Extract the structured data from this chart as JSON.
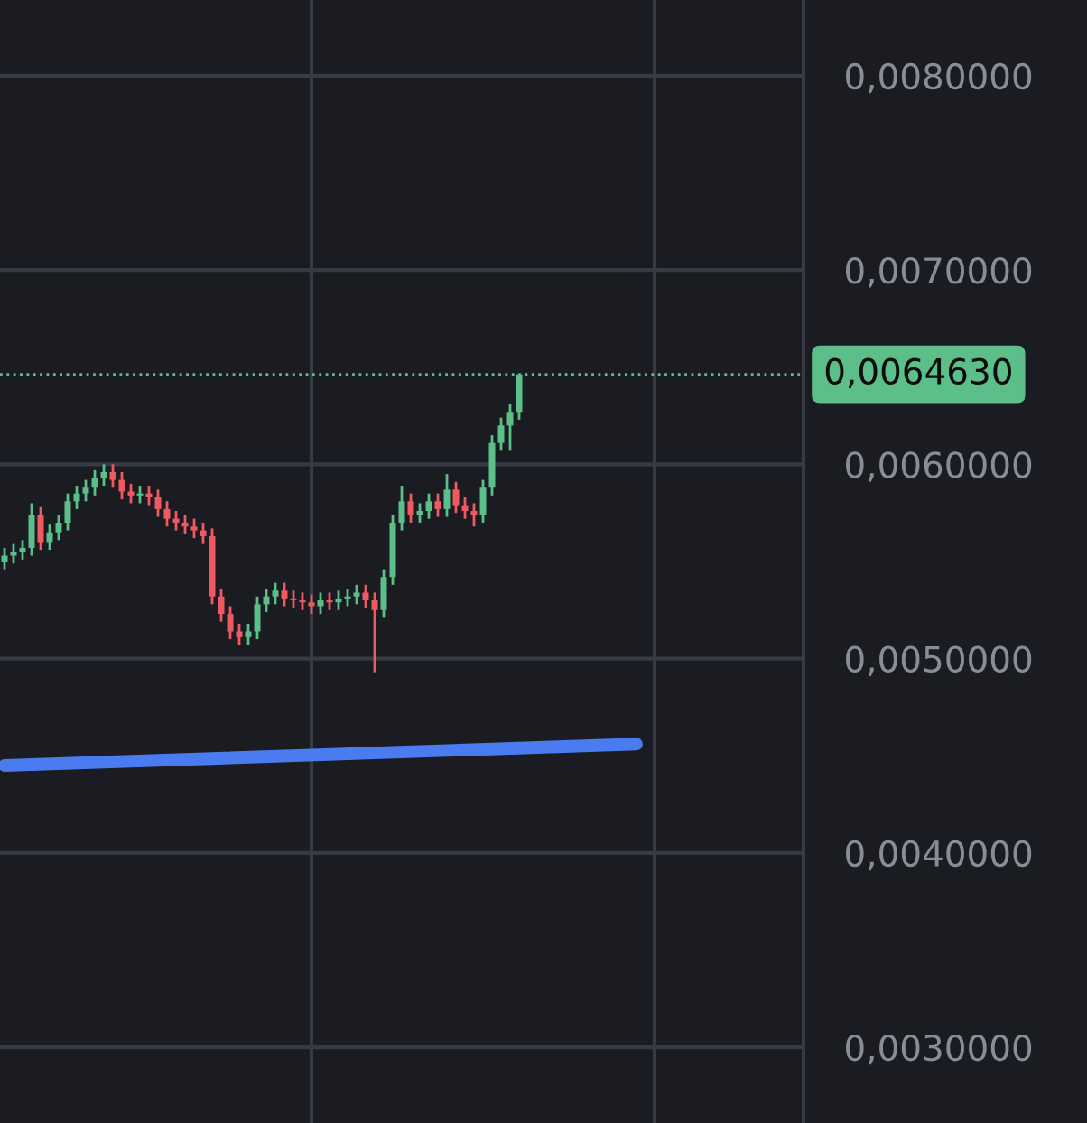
{
  "chart_data": {
    "type": "candlestick",
    "categories": [
      null,
      null,
      null,
      null,
      null,
      null,
      null,
      null,
      null,
      null,
      null,
      null,
      null,
      null,
      null,
      null,
      null,
      null,
      null,
      null,
      null,
      null,
      null,
      null,
      null,
      null,
      null,
      null,
      null,
      null,
      null,
      null,
      null,
      null,
      null,
      null,
      null,
      null,
      null,
      null,
      null,
      null,
      null,
      null,
      null,
      null,
      null,
      null,
      null,
      null,
      null,
      null,
      null,
      null,
      null,
      null,
      null,
      null,
      null,
      null,
      null,
      null,
      null,
      null,
      null,
      null,
      null,
      null,
      null,
      null,
      null,
      null,
      null,
      null,
      null,
      null,
      null,
      null,
      null,
      null,
      null,
      null,
      null,
      null,
      null,
      null,
      null,
      null,
      null
    ],
    "ohlc": [
      [
        0.0055,
        0.00557,
        0.00546,
        0.00553
      ],
      [
        0.00553,
        0.00559,
        0.00549,
        0.00555
      ],
      [
        0.00555,
        0.00561,
        0.00551,
        0.00557
      ],
      [
        0.00557,
        0.0058,
        0.00553,
        0.00574
      ],
      [
        0.00574,
        0.00578,
        0.00556,
        0.0056
      ],
      [
        0.0056,
        0.00569,
        0.00556,
        0.00565
      ],
      [
        0.00565,
        0.00574,
        0.00561,
        0.0057
      ],
      [
        0.0057,
        0.00585,
        0.00566,
        0.00581
      ],
      [
        0.00581,
        0.00589,
        0.00577,
        0.00585
      ],
      [
        0.00585,
        0.00592,
        0.00581,
        0.00588
      ],
      [
        0.00588,
        0.00597,
        0.00584,
        0.00593
      ],
      [
        0.00593,
        0.006,
        0.00589,
        0.00596
      ],
      [
        0.00596,
        0.006,
        0.00588,
        0.00592
      ],
      [
        0.00592,
        0.00596,
        0.00582,
        0.00586
      ],
      [
        0.00586,
        0.0059,
        0.0058,
        0.00584
      ],
      [
        0.00584,
        0.00589,
        0.0058,
        0.00585
      ],
      [
        0.00585,
        0.00589,
        0.00579,
        0.00583
      ],
      [
        0.00583,
        0.00587,
        0.00573,
        0.00577
      ],
      [
        0.00577,
        0.00581,
        0.00568,
        0.00572
      ],
      [
        0.00572,
        0.00576,
        0.00566,
        0.0057
      ],
      [
        0.0057,
        0.00574,
        0.00564,
        0.00568
      ],
      [
        0.00568,
        0.00572,
        0.00562,
        0.00566
      ],
      [
        0.00566,
        0.0057,
        0.00559,
        0.00563
      ],
      [
        0.00563,
        0.00567,
        0.00528,
        0.00532
      ],
      [
        0.00532,
        0.00536,
        0.00519,
        0.00523
      ],
      [
        0.00523,
        0.00527,
        0.0051,
        0.00514
      ],
      [
        0.00514,
        0.00518,
        0.00507,
        0.00511
      ],
      [
        0.00511,
        0.00518,
        0.00507,
        0.00514
      ],
      [
        0.00514,
        0.00532,
        0.0051,
        0.00528
      ],
      [
        0.00528,
        0.00536,
        0.00524,
        0.00532
      ],
      [
        0.00532,
        0.00539,
        0.00528,
        0.00535
      ],
      [
        0.00535,
        0.00539,
        0.00527,
        0.00531
      ],
      [
        0.00531,
        0.00535,
        0.00526,
        0.0053
      ],
      [
        0.0053,
        0.00534,
        0.00525,
        0.00529
      ],
      [
        0.00529,
        0.00533,
        0.00523,
        0.00527
      ],
      [
        0.00527,
        0.00534,
        0.00523,
        0.0053
      ],
      [
        0.0053,
        0.00534,
        0.00525,
        0.00529
      ],
      [
        0.00529,
        0.00535,
        0.00525,
        0.00531
      ],
      [
        0.00531,
        0.00536,
        0.00527,
        0.00532
      ],
      [
        0.00532,
        0.00538,
        0.00528,
        0.00534
      ],
      [
        0.00534,
        0.00538,
        0.00526,
        0.0053
      ],
      [
        0.0053,
        0.00534,
        0.00493,
        0.00525
      ],
      [
        0.00525,
        0.00546,
        0.00521,
        0.00542
      ],
      [
        0.00542,
        0.00574,
        0.00538,
        0.0057
      ],
      [
        0.0057,
        0.00589,
        0.00566,
        0.00581
      ],
      [
        0.00581,
        0.00585,
        0.0057,
        0.00574
      ],
      [
        0.00574,
        0.0058,
        0.0057,
        0.00576
      ],
      [
        0.00576,
        0.00585,
        0.00572,
        0.00581
      ],
      [
        0.00581,
        0.00585,
        0.00573,
        0.00577
      ],
      [
        0.00577,
        0.00595,
        0.00573,
        0.00587
      ],
      [
        0.00587,
        0.00591,
        0.00575,
        0.00579
      ],
      [
        0.00579,
        0.00583,
        0.00572,
        0.00576
      ],
      [
        0.00576,
        0.0058,
        0.00568,
        0.00574
      ],
      [
        0.00574,
        0.00592,
        0.0057,
        0.00588
      ],
      [
        0.00588,
        0.00615,
        0.00584,
        0.00611
      ],
      [
        0.00611,
        0.00624,
        0.00607,
        0.0062
      ],
      [
        0.0062,
        0.00631,
        0.00607,
        0.00627
      ],
      [
        0.00627,
        0.006463,
        0.00623,
        0.006463
      ],
      null,
      null,
      null,
      null,
      null,
      null,
      null,
      null,
      null,
      null,
      null,
      null,
      null,
      null,
      null,
      null,
      null,
      null,
      null,
      null,
      null,
      null,
      null,
      null,
      null,
      null,
      null,
      null,
      null,
      null,
      null
    ],
    "colors": [
      "#5cbf8a",
      "#5cbf8a",
      "#5cbf8a",
      "#5cbf8a",
      "#ef5a62",
      "#5cbf8a",
      "#5cbf8a",
      "#5cbf8a",
      "#5cbf8a",
      "#5cbf8a",
      "#5cbf8a",
      "#5cbf8a",
      "#ef5a62",
      "#ef5a62",
      "#ef5a62",
      "#5cbf8a",
      "#ef5a62",
      "#ef5a62",
      "#ef5a62",
      "#ef5a62",
      "#ef5a62",
      "#ef5a62",
      "#ef5a62",
      "#ef5a62",
      "#ef5a62",
      "#ef5a62",
      "#ef5a62",
      "#5cbf8a",
      "#5cbf8a",
      "#5cbf8a",
      "#5cbf8a",
      "#ef5a62",
      "#ef5a62",
      "#ef5a62",
      "#ef5a62",
      "#5cbf8a",
      "#ef5a62",
      "#5cbf8a",
      "#5cbf8a",
      "#5cbf8a",
      "#ef5a62",
      "#ef5a62",
      "#5cbf8a",
      "#5cbf8a",
      "#5cbf8a",
      "#ef5a62",
      "#5cbf8a",
      "#5cbf8a",
      "#ef5a62",
      "#5cbf8a",
      "#ef5a62",
      "#ef5a62",
      "#ef5a62",
      "#5cbf8a",
      "#5cbf8a",
      "#5cbf8a",
      "#5cbf8a",
      "#5cbf8a",
      null,
      null,
      null,
      null,
      null,
      null,
      null,
      null,
      null,
      null,
      null,
      null,
      null,
      null,
      null,
      null,
      null,
      null,
      null,
      null,
      null,
      null,
      null,
      null,
      null,
      null,
      null,
      null,
      null,
      null,
      null
    ],
    "series": [
      {
        "type": "line",
        "values": [
          0.00445,
          null,
          null,
          null,
          null,
          null,
          null,
          null,
          null,
          null,
          null,
          null,
          null,
          null,
          null,
          null,
          null,
          null,
          null,
          null,
          null,
          null,
          null,
          null,
          null,
          null,
          null,
          null,
          null,
          null,
          null,
          null,
          null,
          null,
          null,
          null,
          null,
          null,
          null,
          null,
          null,
          null,
          null,
          null,
          null,
          null,
          null,
          null,
          null,
          null,
          null,
          null,
          null,
          null,
          null,
          null,
          null,
          null,
          null,
          null,
          null,
          null,
          null,
          null,
          null,
          null,
          null,
          null,
          null,
          null,
          0.00456,
          null,
          null,
          null,
          null,
          null,
          null,
          null,
          null,
          null,
          null,
          null,
          null,
          null,
          null,
          null,
          null,
          null,
          null
        ],
        "color": "#4a7cf0"
      }
    ],
    "ylim": [
      0.00261,
      0.00839
    ],
    "yticks": [
      {
        "value": 0.003,
        "label": "0,0030000"
      },
      {
        "value": 0.004,
        "label": "0,0040000"
      },
      {
        "value": 0.005,
        "label": "0,0050000"
      },
      {
        "value": 0.006,
        "label": "0,0060000"
      },
      {
        "value": 0.007,
        "label": "0,0070000"
      },
      {
        "value": 0.008,
        "label": "0,0080000"
      }
    ],
    "ref_lines": [
      {
        "axis": "y",
        "value": 0.006463,
        "label": "0,0064630",
        "color": "#5cbf8a",
        "line_style": "dotted"
      }
    ],
    "tick_labels": "y",
    "grid": true,
    "legend": false
  }
}
